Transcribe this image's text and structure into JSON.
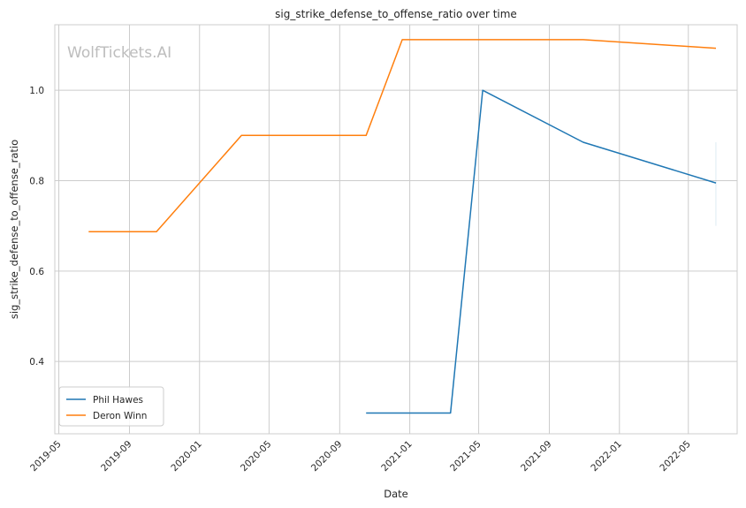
{
  "chart_data": {
    "type": "line",
    "title": "sig_strike_defense_to_offense_ratio over time",
    "xlabel": "Date",
    "ylabel": "sig_strike_defense_to_offense_ratio",
    "watermark": "WolfTickets.AI",
    "xlim": [
      "2019-04-24",
      "2022-07-25"
    ],
    "ylim": [
      0.24,
      1.145
    ],
    "x_ticks": [
      "2019-05",
      "2019-09",
      "2020-01",
      "2020-05",
      "2020-09",
      "2021-01",
      "2021-05",
      "2021-09",
      "2022-01",
      "2022-05"
    ],
    "y_ticks": [
      0.4,
      0.6,
      0.8,
      1.0
    ],
    "y_tick_labels": [
      "0.4",
      "0.6",
      "0.8",
      "1.0"
    ],
    "grid": true,
    "legend_position": "lower-left",
    "series": [
      {
        "name": "Phil Hawes",
        "color": "#1f77b4",
        "points": [
          {
            "x": "2020-10-17",
            "y": 0.286
          },
          {
            "x": "2021-03-13",
            "y": 0.286
          },
          {
            "x": "2021-05-08",
            "y": 1.0
          },
          {
            "x": "2021-10-30",
            "y": 0.885
          },
          {
            "x": "2022-06-18",
            "y": 0.795
          }
        ],
        "error_bar": {
          "x": "2022-06-18",
          "low": 0.7,
          "high": 0.885
        }
      },
      {
        "name": "Deron Winn",
        "color": "#ff7f0e",
        "points": [
          {
            "x": "2019-06-22",
            "y": 0.687
          },
          {
            "x": "2019-10-18",
            "y": 0.687
          },
          {
            "x": "2020-03-14",
            "y": 0.9
          },
          {
            "x": "2020-10-17",
            "y": 0.9
          },
          {
            "x": "2020-12-19",
            "y": 1.112
          },
          {
            "x": "2021-10-30",
            "y": 1.112
          },
          {
            "x": "2022-06-18",
            "y": 1.093
          }
        ]
      }
    ]
  }
}
